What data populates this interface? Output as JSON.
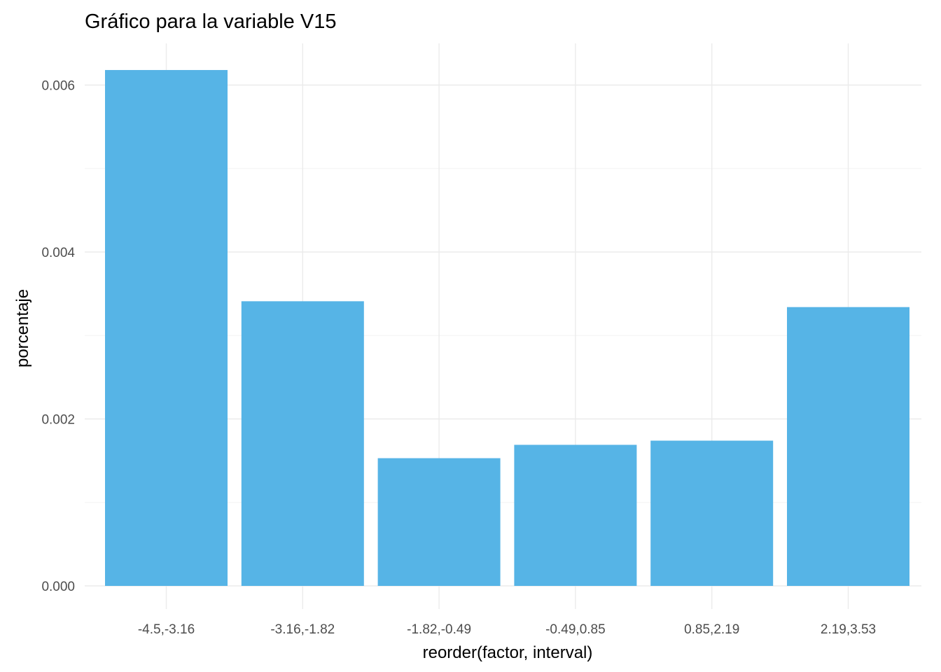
{
  "chart_data": {
    "type": "bar",
    "title": "Gráfico para la variable  V15",
    "xlabel": "reorder(factor, interval)",
    "ylabel": "porcentaje",
    "categories": [
      "-4.5,-3.16",
      "-3.16,-1.82",
      "-1.82,-0.49",
      "-0.49,0.85",
      "0.85,2.19",
      "2.19,3.53"
    ],
    "values": [
      0.00618,
      0.00341,
      0.00153,
      0.00169,
      0.00174,
      0.00334
    ],
    "ylim": [
      0,
      0.0065
    ],
    "yticks": [
      0,
      0.002,
      0.004,
      0.006
    ],
    "ytick_labels": [
      "0.000",
      "0.002",
      "0.004",
      "0.006"
    ],
    "bar_color": "#56b4e6",
    "grid": true,
    "legend": "none"
  }
}
